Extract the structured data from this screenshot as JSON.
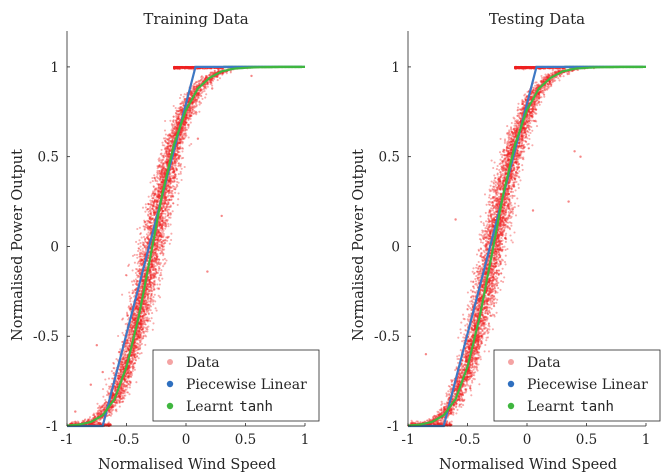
{
  "colors": {
    "data": "#ee2222",
    "piecewise": "#3d78c4",
    "tanh": "#3fb63f",
    "axis": "#262626"
  },
  "chart_data": [
    {
      "type": "scatter",
      "title": "Training Data",
      "xlabel": "Normalised Wind Speed",
      "ylabel": "Normalised Power Output",
      "xlim": [
        -1,
        1
      ],
      "ylim": [
        -1,
        1.2
      ],
      "xticks": [
        "-1",
        "-0.5",
        "0",
        "0.5",
        "1"
      ],
      "yticks": [
        "-1",
        "-0.5",
        "0",
        "0.5",
        "1"
      ],
      "grid": false,
      "legend_position": "bottom-right",
      "legend": [
        "Data",
        "Piecewise Linear",
        "Learnt tanh"
      ],
      "series": [
        {
          "name": "Data",
          "kind": "scatter",
          "description_points": "dense noisy cloud around the sigmoid curve, plus sparse outliers",
          "outliers": [
            [
              -0.93,
              -0.92
            ],
            [
              -0.75,
              -0.55
            ],
            [
              -0.7,
              -0.7
            ],
            [
              -0.55,
              -0.85
            ],
            [
              -0.3,
              0.2
            ],
            [
              0.1,
              0.6
            ],
            [
              0.3,
              0.17
            ],
            [
              0.18,
              -0.14
            ],
            [
              -0.8,
              -0.77
            ],
            [
              0.55,
              0.95
            ],
            [
              -0.3,
              -0.2
            ],
            [
              0.22,
              0.88
            ]
          ]
        },
        {
          "name": "Piecewise Linear",
          "kind": "line",
          "x": [
            -1,
            -0.7,
            0.08,
            1
          ],
          "y": [
            -1,
            -1,
            1,
            1
          ]
        },
        {
          "name": "Learnt tanh",
          "kind": "line",
          "x": [
            -1,
            -0.9,
            -0.8,
            -0.7,
            -0.6,
            -0.5,
            -0.4,
            -0.3,
            -0.2,
            -0.1,
            0,
            0.1,
            0.2,
            0.3,
            0.4,
            0.5,
            0.6,
            0.7,
            0.8,
            1
          ],
          "y": [
            -0.998,
            -0.992,
            -0.978,
            -0.94,
            -0.85,
            -0.67,
            -0.4,
            -0.06,
            0.29,
            0.57,
            0.76,
            0.88,
            0.94,
            0.975,
            0.99,
            0.995,
            0.998,
            0.999,
            1.0,
            1.0
          ]
        }
      ]
    },
    {
      "type": "scatter",
      "title": "Testing Data",
      "xlabel": "Normalised Wind Speed",
      "ylabel": "Normalised Power Output",
      "xlim": [
        -1,
        1
      ],
      "ylim": [
        -1,
        1.2
      ],
      "xticks": [
        "-1",
        "-0.5",
        "0",
        "0.5",
        "1"
      ],
      "yticks": [
        "-1",
        "-0.5",
        "0",
        "0.5",
        "1"
      ],
      "grid": false,
      "legend_position": "bottom-right",
      "legend": [
        "Data",
        "Piecewise Linear",
        "Learnt tanh"
      ],
      "series": [
        {
          "name": "Data",
          "kind": "scatter",
          "description_points": "dense noisy cloud around the sigmoid curve, plus sparse outliers",
          "outliers": [
            [
              -0.6,
              0.15
            ],
            [
              -0.2,
              0.32
            ],
            [
              0.4,
              0.53
            ],
            [
              0.45,
              0.5
            ],
            [
              -0.85,
              -0.6
            ],
            [
              0.05,
              0.2
            ],
            [
              0.35,
              0.25
            ],
            [
              -0.5,
              -0.7
            ]
          ]
        },
        {
          "name": "Piecewise Linear",
          "kind": "line",
          "x": [
            -1,
            -0.7,
            0.08,
            1
          ],
          "y": [
            -1,
            -1,
            1,
            1
          ]
        },
        {
          "name": "Learnt tanh",
          "kind": "line",
          "x": [
            -1,
            -0.9,
            -0.8,
            -0.7,
            -0.6,
            -0.5,
            -0.4,
            -0.3,
            -0.2,
            -0.1,
            0,
            0.1,
            0.2,
            0.3,
            0.4,
            0.5,
            0.6,
            0.7,
            0.8,
            1
          ],
          "y": [
            -0.998,
            -0.992,
            -0.978,
            -0.94,
            -0.85,
            -0.67,
            -0.4,
            -0.06,
            0.29,
            0.57,
            0.76,
            0.88,
            0.94,
            0.975,
            0.99,
            0.995,
            0.998,
            0.999,
            1.0,
            1.0
          ]
        }
      ]
    }
  ],
  "legend_labels": {
    "data": "Data",
    "piecewise": "Piecewise Linear",
    "tanh_prefix": "Learnt",
    "tanh_word": "tanh"
  }
}
